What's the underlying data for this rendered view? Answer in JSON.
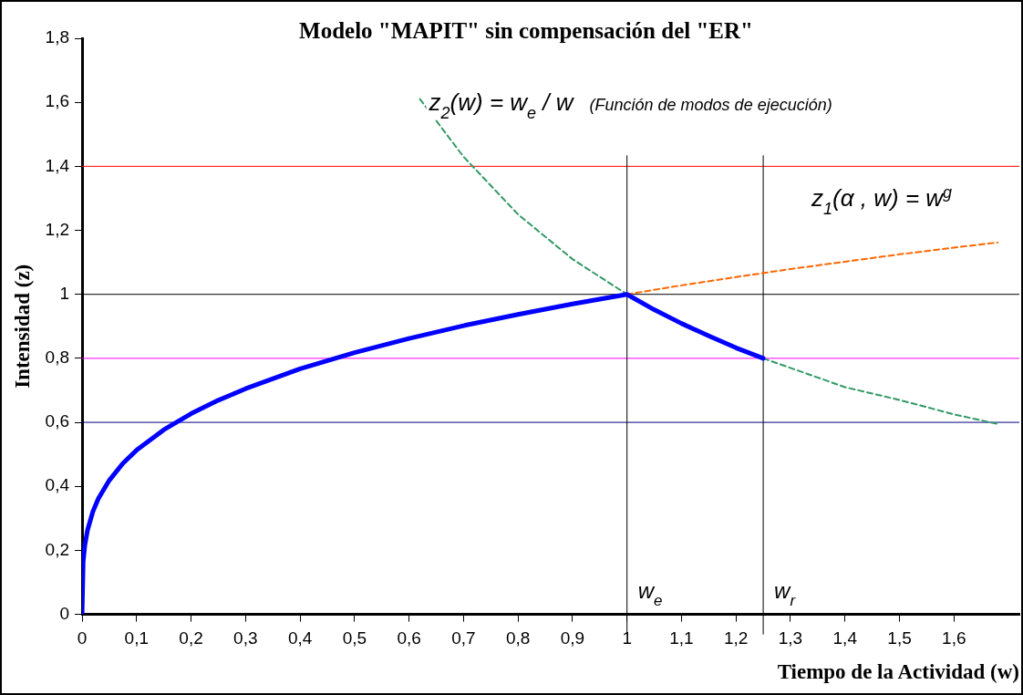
{
  "chart_data": {
    "type": "line",
    "title": "Modelo \"MAPIT\" sin compensación del \"ER\"",
    "xlabel": "Tiempo de la Actividad (w)",
    "ylabel": "Intensidad (z)",
    "xlim": [
      0,
      1.72
    ],
    "ylim": [
      0,
      1.8
    ],
    "xticks": [
      0,
      {
        "value": 0.1,
        "label": "0,1"
      },
      {
        "value": 0.2,
        "label": "0,2"
      },
      {
        "value": 0.3,
        "label": "0,3"
      },
      {
        "value": 0.4,
        "label": "0,4"
      },
      {
        "value": 0.5,
        "label": "0,5"
      },
      {
        "value": 0.6,
        "label": "0,6"
      },
      {
        "value": 0.7,
        "label": "0,7"
      },
      {
        "value": 0.8,
        "label": "0,8"
      },
      {
        "value": 0.9,
        "label": "0,9"
      },
      1,
      {
        "value": 1.1,
        "label": "1,1"
      },
      {
        "value": 1.2,
        "label": "1,2"
      },
      {
        "value": 1.3,
        "label": "1,3"
      },
      {
        "value": 1.4,
        "label": "1,4"
      },
      {
        "value": 1.5,
        "label": "1,5"
      },
      {
        "value": 1.6,
        "label": "1,6"
      }
    ],
    "yticks": [
      0,
      {
        "value": 0.2,
        "label": "0,2"
      },
      {
        "value": 0.4,
        "label": "0,4"
      },
      {
        "value": 0.6,
        "label": "0,6"
      },
      {
        "value": 0.8,
        "label": "0,8"
      },
      1,
      {
        "value": 1.2,
        "label": "1,2"
      },
      {
        "value": 1.4,
        "label": "1,4"
      },
      {
        "value": 1.6,
        "label": "1,6"
      },
      {
        "value": 1.8,
        "label": "1,8"
      }
    ],
    "grid": false,
    "legend": false,
    "marker": "none",
    "series": [
      {
        "color": "#0000ff",
        "line_style": "solid",
        "x": [
          0,
          0.002,
          0.005,
          0.01,
          0.02,
          0.03,
          0.05,
          0.075,
          0.1,
          0.15,
          0.2,
          0.25,
          0.3,
          0.4,
          0.5,
          0.6,
          0.7,
          0.8,
          0.9,
          1,
          1.05,
          1.1,
          1.15,
          1.2,
          1.25
        ],
        "values": [
          0,
          0.165,
          0.215,
          0.263,
          0.322,
          0.362,
          0.419,
          0.472,
          0.513,
          0.577,
          0.627,
          0.669,
          0.705,
          0.767,
          0.818,
          0.862,
          0.902,
          0.937,
          0.97,
          1,
          0.952,
          0.909,
          0.87,
          0.833,
          0.8
        ]
      },
      {
        "name": "z$_{2}$(w) = w$_{e}$ / w",
        "color": "#339966",
        "line_style": "dashed",
        "x": [
          0.62,
          0.7,
          0.8,
          0.9,
          1,
          1.1,
          1.2,
          1.25,
          1.3,
          1.4,
          1.5,
          1.6,
          1.68
        ],
        "values": [
          1.61,
          1.43,
          1.25,
          1.11,
          1,
          null,
          null,
          0.8,
          0.77,
          0.71,
          0.67,
          0.625,
          0.595
        ]
      },
      {
        "name": "z$_{1}$(α , w) = w$^{g}$",
        "color": "#ff6600",
        "line_style": "dashed",
        "x": [
          1,
          1.1,
          1.2,
          1.3,
          1.4,
          1.5,
          1.6,
          1.68
        ],
        "values": [
          1,
          1.028,
          1.054,
          1.079,
          1.102,
          1.125,
          1.146,
          1.162
        ]
      }
    ],
    "ref_lines": [
      {
        "axis": "y",
        "value": 1.4,
        "color": "#ff0000"
      },
      {
        "axis": "y",
        "value": 1,
        "color": "#000000"
      },
      {
        "axis": "y",
        "value": 0.8,
        "color": "#ff00ff"
      },
      {
        "axis": "y",
        "value": 0.6,
        "color": "#000080"
      },
      {
        "axis": "x",
        "value": 1,
        "label": "w$_{e}$",
        "color": "#000000"
      },
      {
        "axis": "x",
        "value": 1.25,
        "label": "w$_{r}$",
        "color": "#000000"
      }
    ],
    "annotations": [
      "(Función de modos de ejecución)"
    ]
  }
}
